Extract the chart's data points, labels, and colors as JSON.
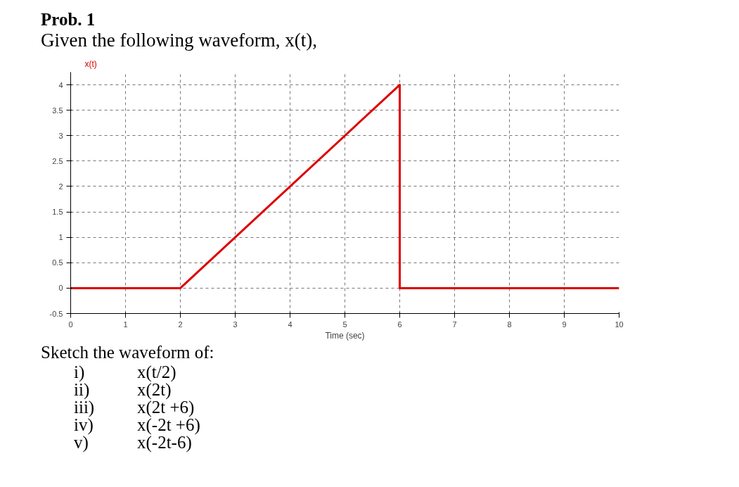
{
  "chart_data": {
    "type": "line",
    "title": "Prob. 1",
    "subtitle": "Given the following waveform, x(t),",
    "xlabel": "Time (sec)",
    "ylabel": "x(t)",
    "x": [
      0,
      2,
      6,
      6,
      10
    ],
    "series": [
      {
        "color": "#dd0000",
        "values": [
          0,
          0,
          4,
          0,
          0
        ]
      }
    ],
    "xlim": [
      0,
      10
    ],
    "ylim": [
      -0.5,
      4.25
    ],
    "xticks": [
      0,
      1,
      2,
      3,
      4,
      5,
      6,
      7,
      8,
      9,
      10
    ],
    "yticks": [
      -0.5,
      0,
      0.5,
      1,
      1.5,
      2,
      2.5,
      3,
      3.5,
      4
    ],
    "grid": true,
    "line_style": "solid",
    "marker": "none",
    "annotations": [
      "Sketch the waveform of:",
      "i)\tx(t/2)",
      "ii)\tx(2t)",
      "iii)\tx(2t +6)",
      "iv)\tx(-2t +6)",
      "v)\tx(-2t-6)"
    ]
  }
}
